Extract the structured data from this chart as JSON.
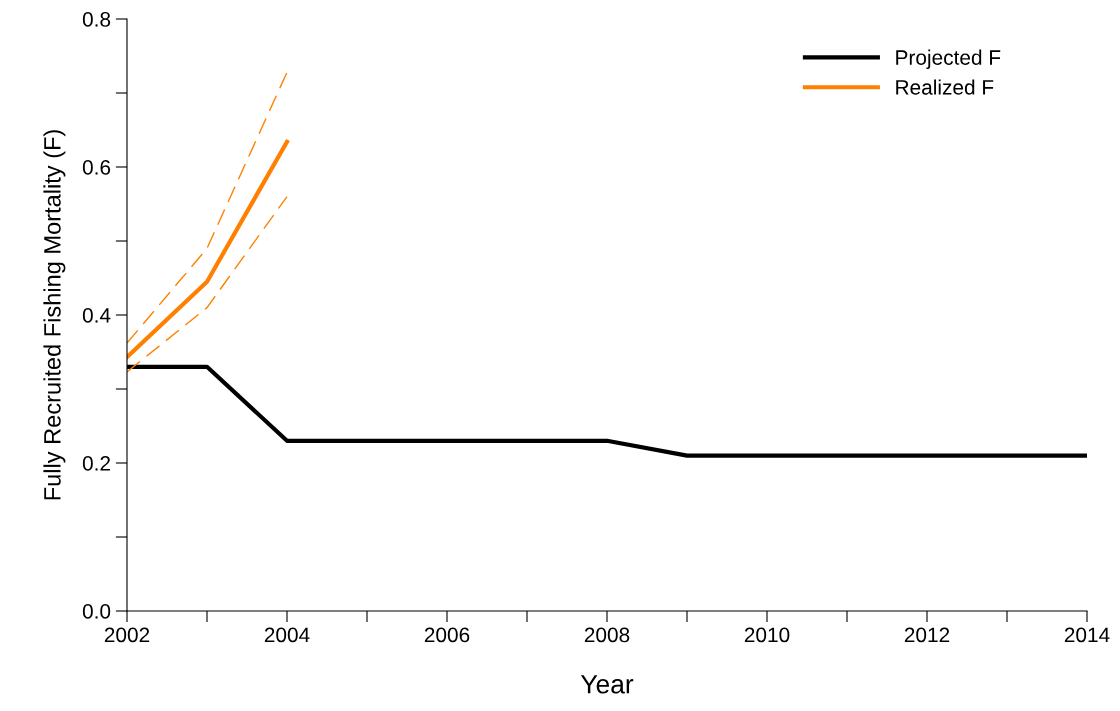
{
  "chart_data": {
    "type": "line",
    "xlabel": "Year",
    "ylabel": "Fully Recruited Fishing Mortality (F)",
    "xlim": [
      2002,
      2014
    ],
    "xticks": [
      2002,
      {
        "value": 2003,
        "label": null
      },
      2004,
      {
        "value": 2005,
        "label": null
      },
      2006,
      {
        "value": 2007,
        "label": null
      },
      2008,
      {
        "value": 2009,
        "label": null
      },
      2010,
      {
        "value": 2011,
        "label": null
      },
      2012,
      {
        "value": 2013,
        "label": null
      },
      2014
    ],
    "ylim": [
      0,
      0.8
    ],
    "yticks": [
      {
        "value": 0,
        "label": "0.0"
      },
      {
        "value": 0.1,
        "label": null
      },
      0.2,
      {
        "value": 0.3,
        "label": null
      },
      0.4,
      {
        "value": 0.5,
        "label": null
      },
      0.6,
      {
        "value": 0.7,
        "label": null
      },
      0.8
    ],
    "grid": false,
    "legend": "top right",
    "marker": "none",
    "line_style": "solid",
    "series": [
      {
        "name": "Projected F",
        "color": "#000000",
        "x": [
          2002,
          2003,
          2004,
          2005,
          2006,
          2007,
          2008,
          2009,
          2010,
          2011,
          2012,
          2013,
          2014
        ],
        "values": [
          0.33,
          0.33,
          0.23,
          0.23,
          0.23,
          0.23,
          0.23,
          0.21,
          0.21,
          0.21,
          0.21,
          0.21,
          0.21
        ]
      },
      {
        "name": "Realized F",
        "color": "#ff8000",
        "x": [
          2002,
          2003,
          2004
        ],
        "values": [
          0.343,
          0.445,
          0.634
        ]
      },
      {
        "color": "#ff8000",
        "line_style": "dashed",
        "x": [
          2002,
          2003,
          2004
        ],
        "values": [
          0.323,
          0.41,
          0.56
        ]
      },
      {
        "color": "#ff8000",
        "line_style": "dashed",
        "x": [
          2002,
          2003,
          2004
        ],
        "values": [
          0.362,
          0.49,
          0.728
        ]
      }
    ]
  }
}
